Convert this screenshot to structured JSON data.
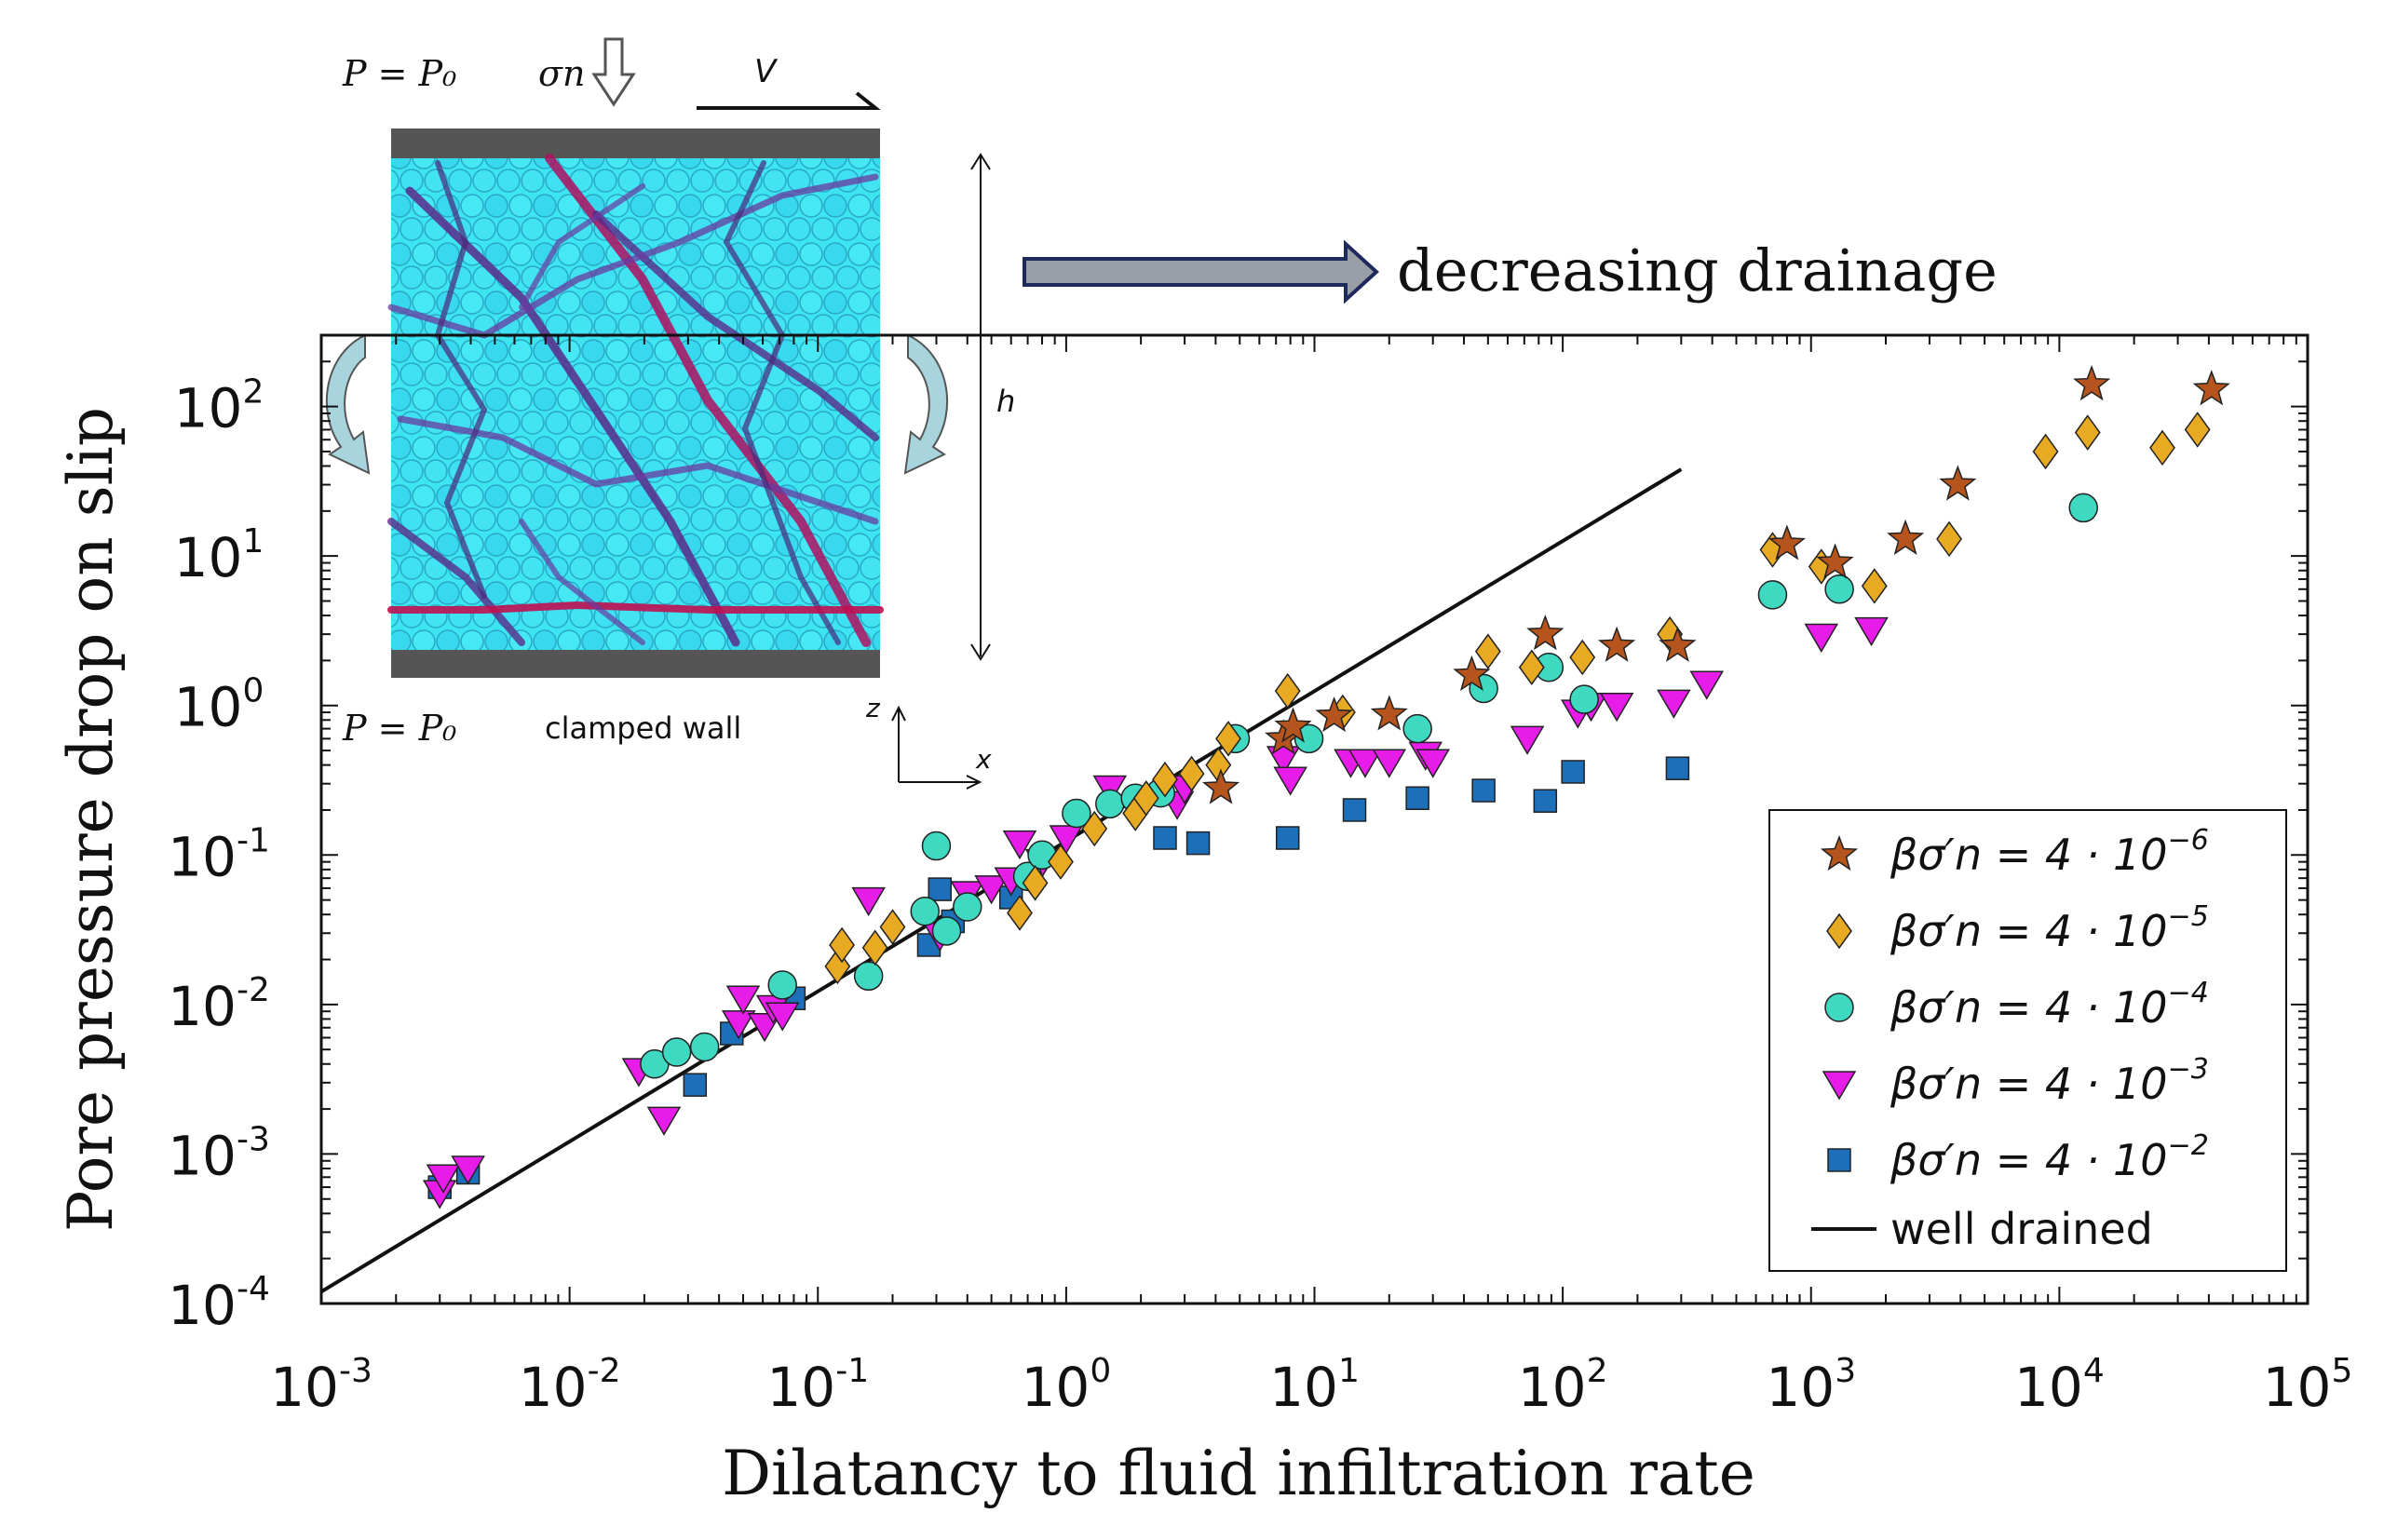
{
  "header": {
    "drainage_label": "decreasing drainage"
  },
  "inset": {
    "top_pressure": "P = P₀",
    "bottom_pressure": "P = P₀",
    "normal_stress": "σn",
    "velocity": "V",
    "height": "h",
    "bottom_wall": "clamped wall",
    "axis_z": "z",
    "axis_x": "x"
  },
  "chart_data": {
    "type": "scatter",
    "xlabel": "Dilatancy to fluid infiltration rate",
    "ylabel": "Pore pressure drop on slip",
    "xscale": "log",
    "yscale": "log",
    "xlim": [
      0.001,
      100000
    ],
    "ylim": [
      0.0001,
      300
    ],
    "x_tick_labels": [
      {
        "base": "10",
        "exp": "-3"
      },
      {
        "base": "10",
        "exp": "-2"
      },
      {
        "base": "10",
        "exp": "-1"
      },
      {
        "base": "10",
        "exp": "0"
      },
      {
        "base": "10",
        "exp": "1"
      },
      {
        "base": "10",
        "exp": "2"
      },
      {
        "base": "10",
        "exp": "3"
      },
      {
        "base": "10",
        "exp": "4"
      },
      {
        "base": "10",
        "exp": "5"
      }
    ],
    "y_tick_labels": [
      {
        "base": "10",
        "exp": "-4"
      },
      {
        "base": "10",
        "exp": "-3"
      },
      {
        "base": "10",
        "exp": "-2"
      },
      {
        "base": "10",
        "exp": "-1"
      },
      {
        "base": "10",
        "exp": "0"
      },
      {
        "base": "10",
        "exp": "1"
      },
      {
        "base": "10",
        "exp": "2"
      }
    ],
    "legend_position": "bottom-right",
    "series": [
      {
        "name": "βσ′n = 4·10⁻⁶",
        "label_base": "βσ′n = 4 · 10",
        "label_exp": "−6",
        "marker": "star",
        "color": "#b5541c",
        "points": [
          [
            4.2,
            0.28
          ],
          [
            7.5,
            0.6
          ],
          [
            8.2,
            0.72
          ],
          [
            12,
            0.85
          ],
          [
            20,
            0.87
          ],
          [
            43,
            1.6
          ],
          [
            85,
            3.0
          ],
          [
            165,
            2.5
          ],
          [
            290,
            2.5
          ],
          [
            800,
            12
          ],
          [
            1250,
            9
          ],
          [
            2400,
            13
          ],
          [
            3900,
            30
          ],
          [
            13500,
            140
          ],
          [
            41000,
            130
          ]
        ]
      },
      {
        "name": "βσ′n = 4·10⁻⁵",
        "label_base": "βσ′n = 4 · 10",
        "label_exp": "−5",
        "marker": "diamond",
        "color": "#e8a923",
        "points": [
          [
            0.12,
            0.018
          ],
          [
            0.125,
            0.025
          ],
          [
            0.17,
            0.024
          ],
          [
            0.2,
            0.033
          ],
          [
            0.65,
            0.041
          ],
          [
            0.75,
            0.065
          ],
          [
            0.95,
            0.09
          ],
          [
            1.3,
            0.15
          ],
          [
            1.9,
            0.19
          ],
          [
            2.1,
            0.24
          ],
          [
            2.5,
            0.32
          ],
          [
            3.2,
            0.35
          ],
          [
            4.1,
            0.4
          ],
          [
            4.5,
            0.6
          ],
          [
            7.8,
            1.25
          ],
          [
            13,
            0.9
          ],
          [
            50,
            2.3
          ],
          [
            75,
            1.8
          ],
          [
            120,
            2.1
          ],
          [
            270,
            3.0
          ],
          [
            700,
            11
          ],
          [
            1100,
            8.5
          ],
          [
            1800,
            6.3
          ],
          [
            3600,
            13
          ],
          [
            8800,
            50
          ],
          [
            13000,
            67
          ],
          [
            26000,
            53
          ],
          [
            36000,
            70
          ]
        ]
      },
      {
        "name": "βσ′n = 4·10⁻⁴",
        "label_base": "βσ′n = 4 · 10",
        "label_exp": "−4",
        "marker": "circle",
        "color": "#3fd8c0",
        "points": [
          [
            0.022,
            0.004
          ],
          [
            0.027,
            0.0048
          ],
          [
            0.035,
            0.0052
          ],
          [
            0.072,
            0.0135
          ],
          [
            0.16,
            0.0155
          ],
          [
            0.27,
            0.042
          ],
          [
            0.3,
            0.115
          ],
          [
            0.33,
            0.031
          ],
          [
            0.4,
            0.045
          ],
          [
            0.7,
            0.072
          ],
          [
            0.8,
            0.1
          ],
          [
            1.1,
            0.19
          ],
          [
            1.5,
            0.22
          ],
          [
            1.9,
            0.24
          ],
          [
            2.4,
            0.26
          ],
          [
            4.8,
            0.6
          ],
          [
            9.5,
            0.6
          ],
          [
            26,
            0.7
          ],
          [
            48,
            1.3
          ],
          [
            88,
            1.8
          ],
          [
            122,
            1.1
          ],
          [
            700,
            5.5
          ],
          [
            1300,
            6
          ],
          [
            12500,
            21
          ]
        ]
      },
      {
        "name": "βσ′n = 4·10⁻³",
        "label_base": "βσ′n = 4 · 10",
        "label_exp": "−3",
        "marker": "triangle-down",
        "color": "#e81ce8",
        "points": [
          [
            0.003,
            0.00055
          ],
          [
            0.0031,
            0.0007
          ],
          [
            0.0039,
            0.0008
          ],
          [
            0.019,
            0.0036
          ],
          [
            0.024,
            0.0017
          ],
          [
            0.048,
            0.0075
          ],
          [
            0.05,
            0.011
          ],
          [
            0.061,
            0.0072
          ],
          [
            0.066,
            0.0095
          ],
          [
            0.072,
            0.0085
          ],
          [
            0.16,
            0.05
          ],
          [
            0.31,
            0.029
          ],
          [
            0.4,
            0.055
          ],
          [
            0.5,
            0.06
          ],
          [
            0.6,
            0.068
          ],
          [
            0.65,
            0.12
          ],
          [
            0.8,
            0.09
          ],
          [
            1.0,
            0.13
          ],
          [
            1.5,
            0.28
          ],
          [
            2.8,
            0.22
          ],
          [
            3.0,
            0.28
          ],
          [
            7.5,
            0.44
          ],
          [
            8,
            0.32
          ],
          [
            14,
            0.42
          ],
          [
            16,
            0.42
          ],
          [
            20,
            0.42
          ],
          [
            28,
            0.47
          ],
          [
            30,
            0.42
          ],
          [
            72,
            0.6
          ],
          [
            115,
            0.9
          ],
          [
            130,
            1.0
          ],
          [
            165,
            1.0
          ],
          [
            280,
            1.05
          ],
          [
            380,
            1.4
          ],
          [
            1100,
            2.9
          ],
          [
            1750,
            3.2
          ]
        ]
      },
      {
        "name": "βσ′n = 4·10⁻²",
        "label_base": "βσ′n = 4 · 10",
        "label_exp": "−2",
        "marker": "square",
        "color": "#1c6fb8",
        "points": [
          [
            0.003,
            0.0006
          ],
          [
            0.0039,
            0.00075
          ],
          [
            0.032,
            0.0029
          ],
          [
            0.045,
            0.0064
          ],
          [
            0.08,
            0.011
          ],
          [
            0.28,
            0.025
          ],
          [
            0.31,
            0.059
          ],
          [
            0.35,
            0.036
          ],
          [
            0.6,
            0.052
          ],
          [
            2.5,
            0.13
          ],
          [
            3.4,
            0.12
          ],
          [
            7.8,
            0.13
          ],
          [
            14.5,
            0.2
          ],
          [
            26,
            0.24
          ],
          [
            48,
            0.27
          ],
          [
            85,
            0.23
          ],
          [
            110,
            0.36
          ],
          [
            290,
            0.38
          ]
        ]
      }
    ],
    "reference_line": {
      "name": "well drained",
      "from": [
        0.001,
        0.00012
      ],
      "to": [
        300,
        38
      ]
    }
  }
}
